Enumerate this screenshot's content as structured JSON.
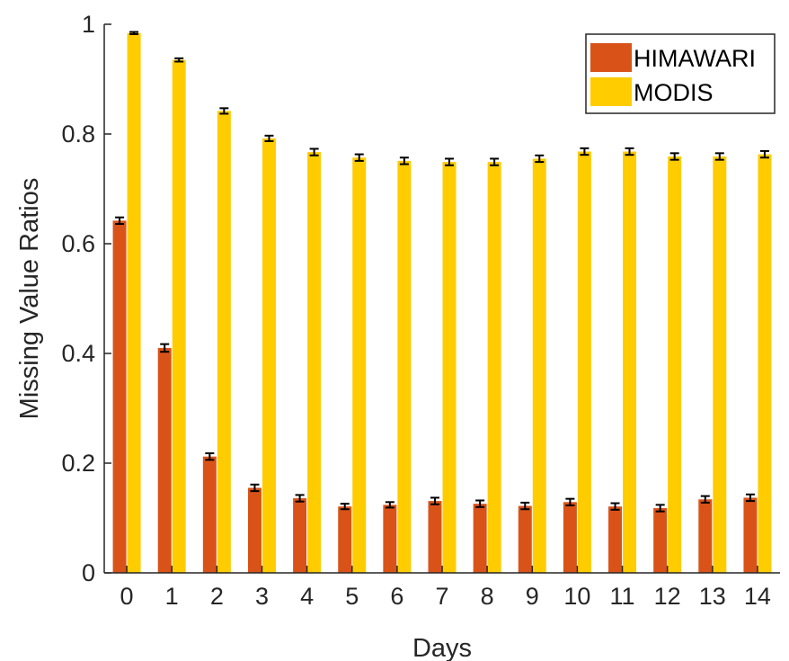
{
  "chart_data": {
    "type": "bar",
    "xlabel": "Days",
    "ylabel": "Missing Value Ratios",
    "ylim": [
      0,
      1
    ],
    "yticks": [
      0,
      0.2,
      0.4,
      0.6,
      0.8,
      1
    ],
    "ytick_labels": [
      "0",
      "0.2",
      "0.4",
      "0.6",
      "0.8",
      "1"
    ],
    "categories": [
      "0",
      "1",
      "2",
      "3",
      "4",
      "5",
      "6",
      "7",
      "8",
      "9",
      "10",
      "11",
      "12",
      "13",
      "14"
    ],
    "grid": false,
    "legend_position": "top-right",
    "series": [
      {
        "name": "HIMAWARI",
        "color": "#D95319",
        "values": [
          0.642,
          0.41,
          0.212,
          0.155,
          0.136,
          0.121,
          0.124,
          0.131,
          0.126,
          0.122,
          0.129,
          0.121,
          0.118,
          0.134,
          0.137
        ],
        "errors": [
          0.006,
          0.007,
          0.006,
          0.006,
          0.006,
          0.005,
          0.005,
          0.006,
          0.006,
          0.006,
          0.006,
          0.006,
          0.006,
          0.006,
          0.006
        ]
      },
      {
        "name": "MODIS",
        "color": "#FFCC00",
        "values": [
          0.984,
          0.935,
          0.842,
          0.792,
          0.767,
          0.757,
          0.751,
          0.749,
          0.749,
          0.755,
          0.768,
          0.768,
          0.759,
          0.759,
          0.763
        ],
        "errors": [
          0.002,
          0.003,
          0.005,
          0.005,
          0.006,
          0.006,
          0.006,
          0.006,
          0.006,
          0.006,
          0.006,
          0.006,
          0.006,
          0.006,
          0.006
        ]
      }
    ]
  }
}
